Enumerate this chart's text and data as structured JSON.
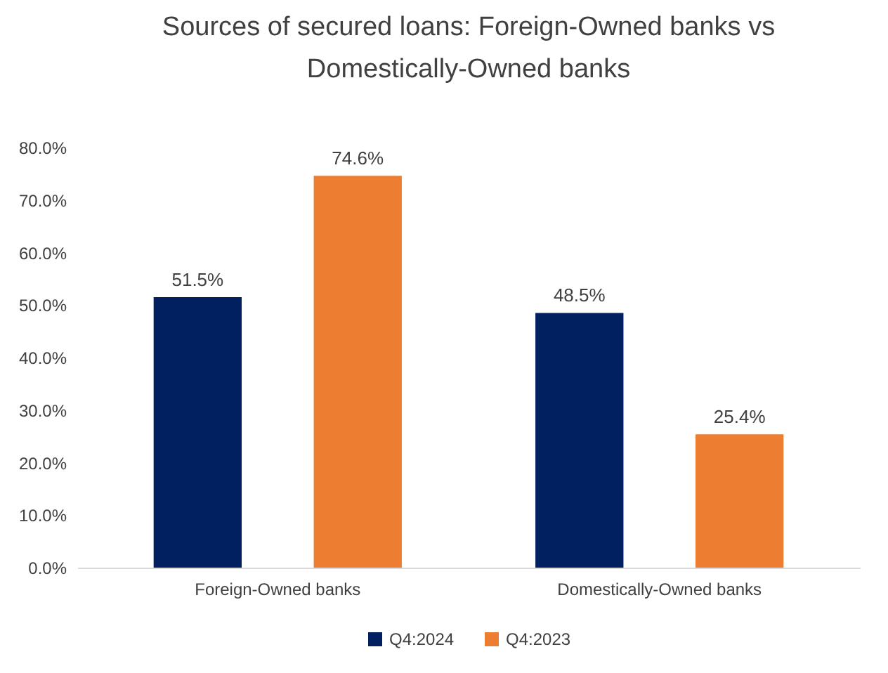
{
  "chart_data": {
    "type": "bar",
    "title": "Sources of secured loans: Foreign-Owned banks vs Domestically-Owned banks",
    "categories": [
      "Foreign-Owned banks",
      "Domestically-Owned banks"
    ],
    "series": [
      {
        "name": "Q4:2024",
        "color": "#002060",
        "values": [
          51.5,
          48.5
        ],
        "value_labels": [
          "51.5%",
          "48.5%"
        ]
      },
      {
        "name": "Q4:2023",
        "color": "#ed7d31",
        "values": [
          74.6,
          25.4
        ],
        "value_labels": [
          "74.6%",
          "25.4%"
        ]
      }
    ],
    "ylim": [
      0,
      80
    ],
    "yticks": [
      {
        "value": 0,
        "label": "0.0%"
      },
      {
        "value": 10,
        "label": "10.0%"
      },
      {
        "value": 20,
        "label": "20.0%"
      },
      {
        "value": 30,
        "label": "30.0%"
      },
      {
        "value": 40,
        "label": "40.0%"
      },
      {
        "value": 50,
        "label": "50.0%"
      },
      {
        "value": 60,
        "label": "60.0%"
      },
      {
        "value": 70,
        "label": "70.0%"
      },
      {
        "value": 80,
        "label": "80.0%"
      }
    ],
    "grid": false,
    "legend": "bottom"
  }
}
